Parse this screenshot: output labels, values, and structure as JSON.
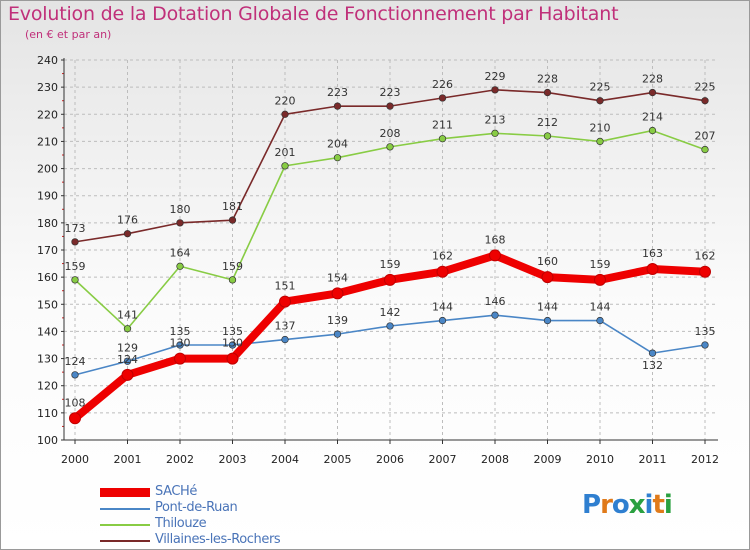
{
  "chart_data": {
    "type": "line",
    "title": "Evolution de la Dotation Globale de Fonctionnement par Habitant",
    "subtitle": "(en € et par an)",
    "x": [
      "2000",
      "2001",
      "2002",
      "2003",
      "2004",
      "2005",
      "2006",
      "2007",
      "2008",
      "2009",
      "2010",
      "2011",
      "2012"
    ],
    "ylim": [
      100,
      240
    ],
    "yticks": [
      100,
      110,
      120,
      130,
      140,
      150,
      160,
      170,
      180,
      190,
      200,
      210,
      220,
      230,
      240
    ],
    "grid": true,
    "legend_position": "bottom-left",
    "series": [
      {
        "name": "SACHé",
        "color": "#ee0000",
        "values": [
          108,
          124,
          130,
          130,
          151,
          154,
          159,
          162,
          168,
          160,
          159,
          163,
          162
        ]
      },
      {
        "name": "Pont-de-Ruan",
        "color": "#4a86c6",
        "values": [
          124,
          129,
          135,
          135,
          137,
          139,
          142,
          144,
          146,
          144,
          144,
          132,
          135
        ]
      },
      {
        "name": "Thilouze",
        "color": "#88cc44",
        "values": [
          159,
          141,
          164,
          159,
          201,
          204,
          208,
          211,
          213,
          212,
          210,
          214,
          207
        ]
      },
      {
        "name": "Villaines-les-Rochers",
        "color": "#7a2a2a",
        "values": [
          173,
          176,
          180,
          181,
          220,
          223,
          223,
          226,
          229,
          228,
          225,
          228,
          225
        ]
      }
    ]
  },
  "logo": {
    "text": "Proxiti",
    "letters": [
      "P",
      "r",
      "o",
      "x",
      "i",
      "t",
      "i"
    ],
    "colors": [
      "#2f7fd0",
      "#e07a1a",
      "#2f7fd0",
      "#2aa040",
      "#2f7fd0",
      "#e07a1a",
      "#2aa040"
    ]
  }
}
